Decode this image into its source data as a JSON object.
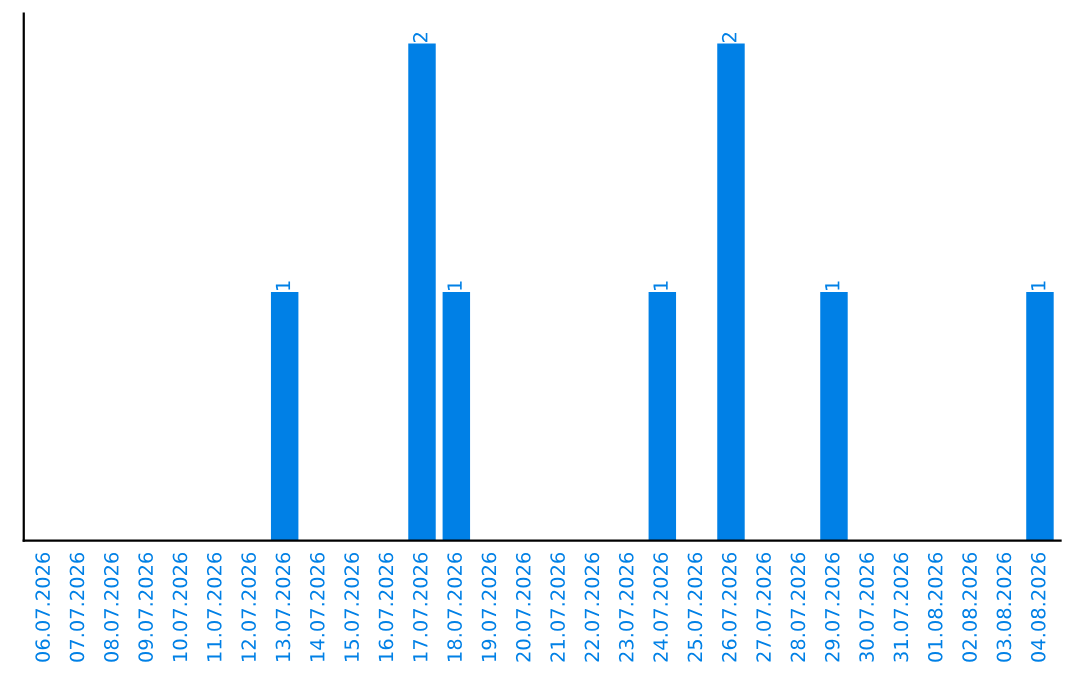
{
  "chart_data": {
    "type": "bar",
    "categories": [
      "06.07.2026",
      "07.07.2026",
      "08.07.2026",
      "09.07.2026",
      "10.07.2026",
      "11.07.2026",
      "12.07.2026",
      "13.07.2026",
      "14.07.2026",
      "15.07.2026",
      "16.07.2026",
      "17.07.2026",
      "18.07.2026",
      "19.07.2026",
      "20.07.2026",
      "21.07.2026",
      "22.07.2026",
      "23.07.2026",
      "24.07.2026",
      "25.07.2026",
      "26.07.2026",
      "27.07.2026",
      "28.07.2026",
      "29.07.2026",
      "30.07.2026",
      "31.07.2026",
      "01.08.2026",
      "02.08.2026",
      "03.08.2026",
      "04.08.2026"
    ],
    "values": [
      0,
      0,
      0,
      0,
      0,
      0,
      0,
      1,
      0,
      0,
      0,
      2,
      1,
      0,
      0,
      0,
      0,
      0,
      1,
      0,
      2,
      0,
      0,
      1,
      0,
      0,
      0,
      0,
      0,
      1
    ],
    "color": "#0080e6",
    "value_labels": [
      null,
      null,
      null,
      null,
      null,
      null,
      null,
      "1",
      null,
      null,
      null,
      "2",
      "1",
      null,
      null,
      null,
      null,
      null,
      "1",
      null,
      "2",
      null,
      null,
      "1",
      null,
      null,
      null,
      null,
      null,
      "1"
    ],
    "tick_labels": "x",
    "grid": false,
    "legend": false
  }
}
